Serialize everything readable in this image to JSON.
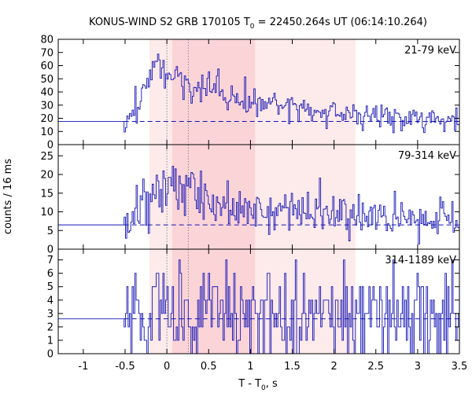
{
  "chart_data": {
    "type": "line",
    "title": "KONUS-WIND S2 GRB 170105 T",
    "title_sub": "0",
    "title_rest": " = 22450.264s UT (06:14:10.264)",
    "xlabel": "T - T",
    "xlabel_sub": "0",
    "xlabel_rest": ", s",
    "ylabel": "counts / 16 ms",
    "xlim": [
      -1.3,
      3.5
    ],
    "x_ticks": [
      -1,
      -0.5,
      0,
      0.5,
      1,
      1.5,
      2,
      2.5,
      3,
      3.5
    ],
    "x_tick_labels": [
      "-1",
      "-0.5",
      "0",
      "0.5",
      "1",
      "1.5",
      "2",
      "2.5",
      "3",
      "3.5"
    ],
    "dotted_lines_x": [
      0.0,
      0.256
    ],
    "intervals": [
      {
        "from": -0.208,
        "to": 2.256,
        "color": "#fdeaea"
      },
      {
        "from": 0.064,
        "to": 1.056,
        "color": "#fbd4d8"
      }
    ],
    "series_color": "#1515b5",
    "bin_width": 0.016,
    "pre_level_start": -0.512,
    "panels": [
      {
        "name": "21-79 keV",
        "ylim": [
          0,
          80
        ],
        "y_ticks": [
          0,
          10,
          20,
          30,
          40,
          50,
          60,
          70,
          80
        ],
        "background": 17.6,
        "post_level": 17.6,
        "keypoints": [
          [
            -0.5,
            17
          ],
          [
            -0.46,
            18
          ],
          [
            -0.4,
            25
          ],
          [
            -0.3,
            36
          ],
          [
            -0.2,
            48
          ],
          [
            -0.16,
            60
          ],
          [
            -0.12,
            67
          ],
          [
            -0.06,
            58
          ],
          [
            0.0,
            52
          ],
          [
            0.06,
            50
          ],
          [
            0.12,
            46
          ],
          [
            0.2,
            44
          ],
          [
            0.26,
            50
          ],
          [
            0.32,
            42
          ],
          [
            0.45,
            45
          ],
          [
            0.6,
            43
          ],
          [
            0.8,
            35
          ],
          [
            1.0,
            33
          ],
          [
            1.2,
            32
          ],
          [
            1.45,
            29
          ],
          [
            1.8,
            25
          ],
          [
            2.2,
            23
          ],
          [
            2.6,
            22
          ],
          [
            3.0,
            21
          ],
          [
            3.5,
            19
          ]
        ]
      },
      {
        "name": "79-314 keV",
        "ylim": [
          0,
          28
        ],
        "y_ticks": [
          0,
          5,
          10,
          15,
          20,
          25
        ],
        "background": 6.5,
        "post_level": 6.5,
        "keypoints": [
          [
            -0.5,
            6
          ],
          [
            -0.46,
            6.5
          ],
          [
            -0.4,
            9
          ],
          [
            -0.3,
            12
          ],
          [
            -0.2,
            14
          ],
          [
            -0.1,
            16
          ],
          [
            0.0,
            15
          ],
          [
            0.1,
            16
          ],
          [
            0.2,
            13
          ],
          [
            0.28,
            17
          ],
          [
            0.35,
            14
          ],
          [
            0.5,
            13
          ],
          [
            0.7,
            12
          ],
          [
            0.9,
            11.5
          ],
          [
            1.2,
            10.5
          ],
          [
            1.5,
            10
          ],
          [
            1.8,
            9.5
          ],
          [
            2.2,
            9
          ],
          [
            2.6,
            8.5
          ],
          [
            3.0,
            8
          ],
          [
            3.5,
            7.5
          ]
        ]
      },
      {
        "name": "314-1189 keV",
        "ylim": [
          0,
          7.8
        ],
        "y_ticks": [
          0,
          1,
          2,
          3,
          4,
          5,
          6,
          7
        ],
        "background": 2.6,
        "post_level": 2.6,
        "keypoints": [
          [
            -0.5,
            2.6
          ],
          [
            -0.4,
            2.6
          ],
          [
            -0.2,
            3.0
          ],
          [
            0.0,
            3.2
          ],
          [
            0.3,
            3.3
          ],
          [
            0.6,
            3.2
          ],
          [
            1.0,
            3.0
          ],
          [
            1.5,
            2.8
          ],
          [
            2.0,
            2.7
          ],
          [
            2.5,
            2.7
          ],
          [
            3.0,
            2.7
          ],
          [
            3.5,
            2.7
          ]
        ]
      }
    ]
  }
}
